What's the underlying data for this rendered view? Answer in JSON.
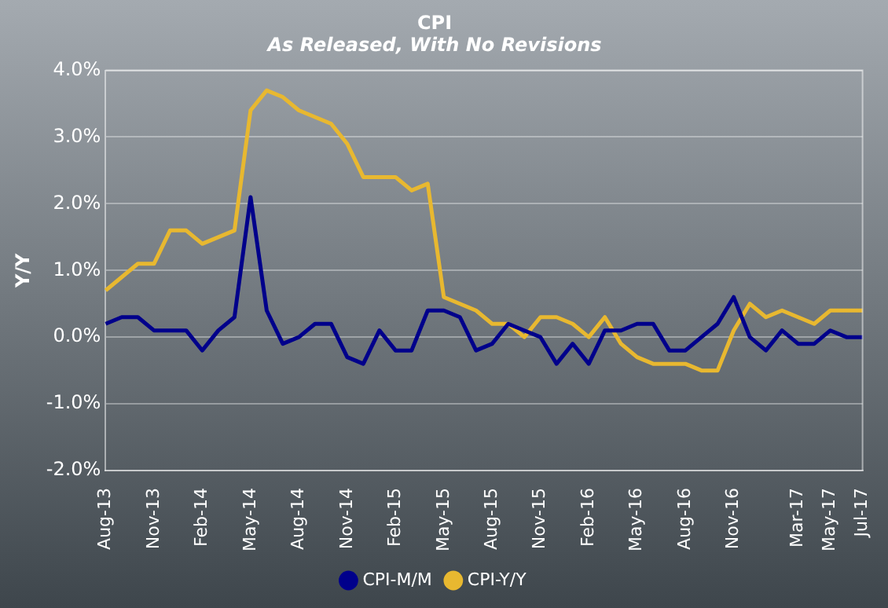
{
  "chart_data": {
    "type": "line",
    "title": "CPI",
    "subtitle": "As Released, With No Revisions",
    "ylabel": "Y/Y",
    "categories": [
      "Aug-13",
      null,
      null,
      "Nov-13",
      null,
      null,
      "Feb-14",
      null,
      null,
      "May-14",
      null,
      null,
      "Aug-14",
      null,
      null,
      "Nov-14",
      null,
      null,
      "Feb-15",
      null,
      null,
      "May-15",
      null,
      null,
      "Aug-15",
      null,
      null,
      "Nov-15",
      null,
      null,
      "Feb-16",
      null,
      null,
      "May-16",
      null,
      null,
      "Aug-16",
      null,
      null,
      "Nov-16",
      null,
      null,
      null,
      "Mar-17",
      null,
      "May-17",
      null,
      "Jul-17"
    ],
    "series": [
      {
        "name": "CPI-M/M",
        "color": "#00008b",
        "values": [
          0.2,
          0.3,
          0.3,
          0.1,
          0.1,
          0.1,
          -0.2,
          0.1,
          0.3,
          2.1,
          0.4,
          -0.1,
          0.0,
          0.2,
          0.2,
          -0.3,
          -0.4,
          0.1,
          -0.2,
          -0.2,
          0.4,
          0.4,
          0.3,
          -0.2,
          -0.1,
          0.2,
          0.1,
          0.0,
          -0.4,
          -0.1,
          -0.4,
          0.1,
          0.1,
          0.2,
          0.2,
          -0.2,
          -0.2,
          0.0,
          0.2,
          0.6,
          0.0,
          -0.2,
          0.1,
          -0.1,
          -0.1,
          0.1,
          0.0,
          0.0
        ]
      },
      {
        "name": "CPI-Y/Y",
        "color": "#e8b830",
        "values": [
          0.7,
          0.9,
          1.1,
          1.1,
          1.6,
          1.6,
          1.4,
          1.5,
          1.6,
          3.4,
          3.7,
          3.6,
          3.4,
          3.3,
          3.2,
          2.9,
          2.4,
          2.4,
          2.4,
          2.2,
          2.3,
          0.6,
          0.5,
          0.4,
          0.2,
          0.2,
          0.0,
          0.3,
          0.3,
          0.2,
          0.0,
          0.3,
          -0.1,
          -0.3,
          -0.4,
          -0.4,
          -0.4,
          -0.5,
          -0.5,
          0.1,
          0.5,
          0.3,
          0.4,
          0.3,
          0.2,
          0.4,
          0.4,
          0.4
        ]
      }
    ],
    "ylim": [
      -2,
      4
    ],
    "yticks": [
      {
        "value": -2,
        "label": "-2.0%"
      },
      {
        "value": -1,
        "label": "-1.0%"
      },
      {
        "value": 0,
        "label": "0.0%"
      },
      {
        "value": 1,
        "label": "1.0%"
      },
      {
        "value": 2,
        "label": "2.0%"
      },
      {
        "value": 3,
        "label": "3.0%"
      },
      {
        "value": 4,
        "label": "4.0%"
      }
    ],
    "grid": "y",
    "legend": "bottom",
    "marker": "none",
    "line_style": "solid"
  }
}
